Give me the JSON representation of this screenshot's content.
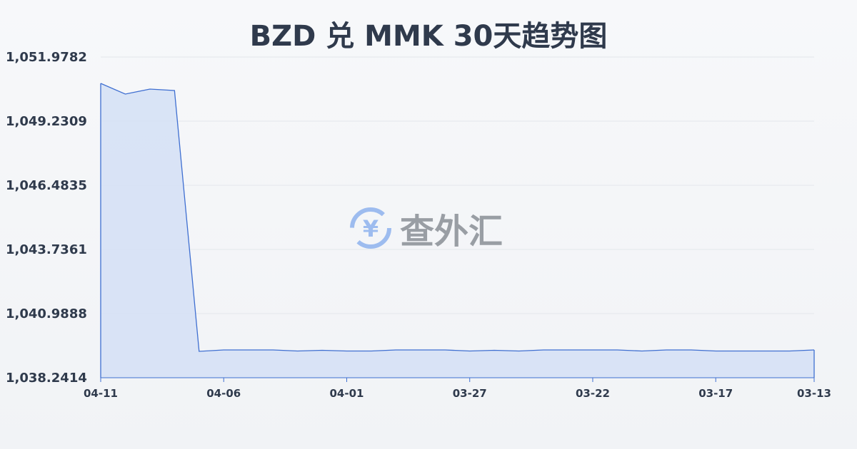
{
  "chart_data": {
    "type": "area",
    "title": "BZD 兑 MMK 30天趋势图",
    "x": [
      "04-11",
      "04-10",
      "04-09",
      "04-08",
      "04-07",
      "04-06",
      "04-05",
      "04-04",
      "04-03",
      "04-02",
      "04-01",
      "03-31",
      "03-30",
      "03-29",
      "03-28",
      "03-27",
      "03-26",
      "03-25",
      "03-24",
      "03-23",
      "03-22",
      "03-21",
      "03-20",
      "03-19",
      "03-18",
      "03-17",
      "03-16",
      "03-15",
      "03-14",
      "03-13"
    ],
    "values": [
      1050.849,
      1050.391,
      1050.605,
      1050.543,
      1039.371,
      1039.432,
      1039.432,
      1039.432,
      1039.386,
      1039.417,
      1039.386,
      1039.386,
      1039.432,
      1039.432,
      1039.432,
      1039.386,
      1039.417,
      1039.386,
      1039.432,
      1039.432,
      1039.432,
      1039.432,
      1039.386,
      1039.432,
      1039.432,
      1039.386,
      1039.386,
      1039.386,
      1039.386,
      1039.432
    ],
    "xticks": [
      "04-11",
      "04-06",
      "04-01",
      "03-27",
      "03-22",
      "03-17",
      "03-13"
    ],
    "yticks": [
      "1,051.9782",
      "1,049.2309",
      "1,046.4835",
      "1,043.7361",
      "1,040.9888",
      "1,038.2414"
    ],
    "ylim": [
      1038.2414,
      1051.9782
    ],
    "grid": true,
    "colors": {
      "line": "#3f6fd1",
      "fill": "#d6e1f5"
    }
  },
  "watermark": {
    "text": "查外汇"
  }
}
